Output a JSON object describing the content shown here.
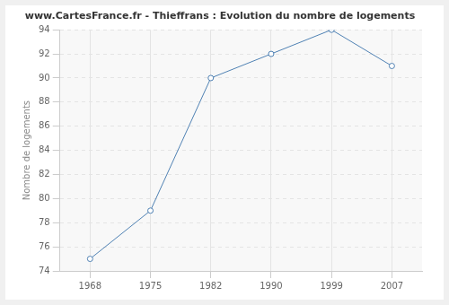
{
  "chart_data": {
    "type": "line",
    "title": "www.CartesFrance.fr - Thieffrans : Evolution du nombre de logements",
    "y_label": "Nombre de logements",
    "categories": [
      "1968",
      "1975",
      "1982",
      "1990",
      "1999",
      "2007"
    ],
    "values": [
      75,
      79,
      90,
      92,
      94,
      91
    ],
    "color": "#4f81b3",
    "marker": "circle",
    "ylim": [
      74,
      94
    ],
    "yticks": [
      74,
      76,
      78,
      80,
      82,
      84,
      86,
      88,
      90,
      92,
      94
    ],
    "grid": true
  }
}
